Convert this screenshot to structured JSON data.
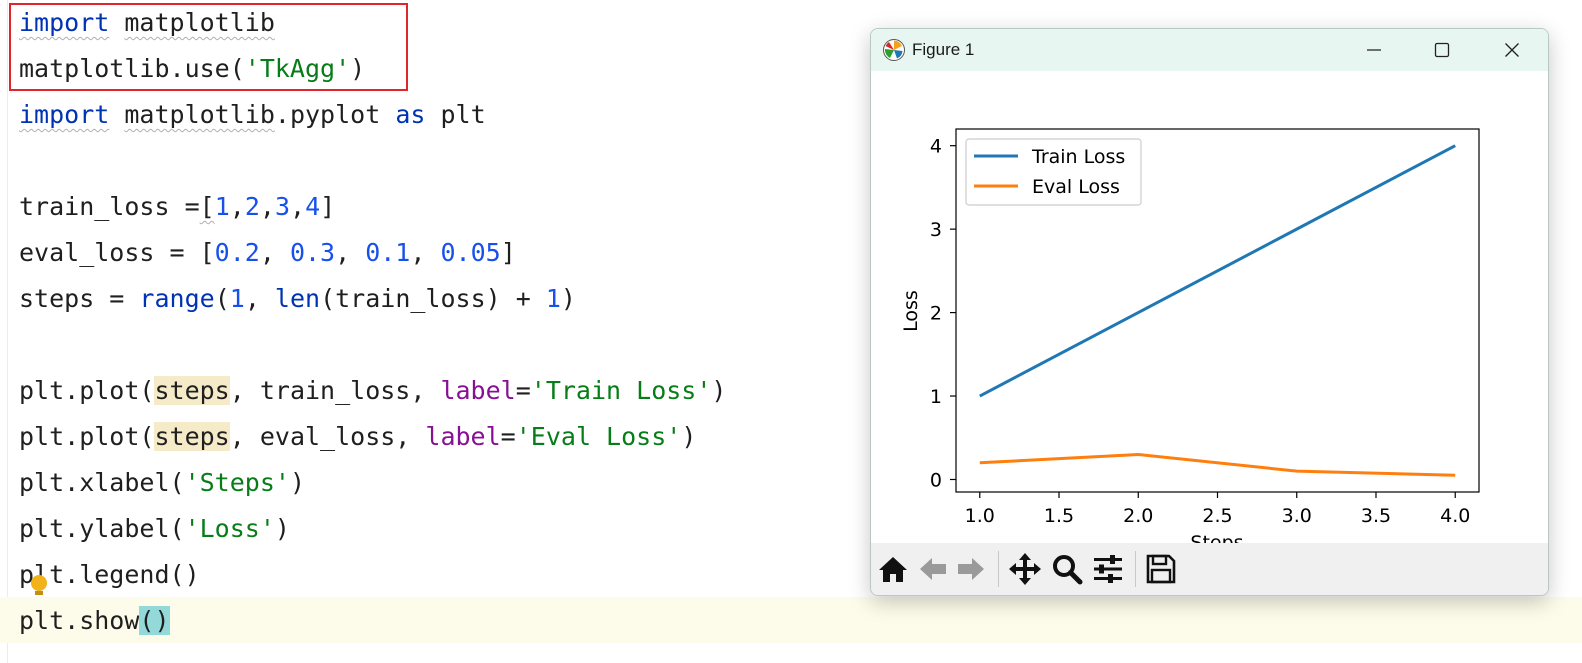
{
  "editor": {
    "lines": [
      {
        "tokens": [
          {
            "t": "import",
            "c": "kw",
            "sq": true
          },
          {
            "t": " "
          },
          {
            "t": "matplotlib",
            "sq": true
          }
        ]
      },
      {
        "tokens": [
          {
            "t": "matplotlib.use("
          },
          {
            "t": "'TkAgg'",
            "c": "str"
          },
          {
            "t": ")"
          }
        ]
      },
      {
        "tokens": [
          {
            "t": "import",
            "c": "kw",
            "sq": true
          },
          {
            "t": " "
          },
          {
            "t": "matplotlib",
            "sq": true
          },
          {
            "t": ".pyplot "
          },
          {
            "t": "as",
            "c": "kw"
          },
          {
            "t": " plt"
          }
        ]
      },
      {
        "tokens": []
      },
      {
        "tokens": [
          {
            "t": "train_loss ="
          },
          {
            "t": "[",
            "sq": true
          },
          {
            "t": "1",
            "c": "num"
          },
          {
            "t": ","
          },
          {
            "t": "2",
            "c": "num"
          },
          {
            "t": ","
          },
          {
            "t": "3",
            "c": "num"
          },
          {
            "t": ","
          },
          {
            "t": "4",
            "c": "num"
          },
          {
            "t": "]"
          }
        ]
      },
      {
        "tokens": [
          {
            "t": "eval_loss = ["
          },
          {
            "t": "0.2",
            "c": "num"
          },
          {
            "t": ", "
          },
          {
            "t": "0.3",
            "c": "num"
          },
          {
            "t": ", "
          },
          {
            "t": "0.1",
            "c": "num"
          },
          {
            "t": ", "
          },
          {
            "t": "0.05",
            "c": "num"
          },
          {
            "t": "]"
          }
        ]
      },
      {
        "tokens": [
          {
            "t": "steps = "
          },
          {
            "t": "range",
            "c": "kw"
          },
          {
            "t": "("
          },
          {
            "t": "1",
            "c": "num"
          },
          {
            "t": ", "
          },
          {
            "t": "len",
            "c": "kw"
          },
          {
            "t": "(train_loss) + "
          },
          {
            "t": "1",
            "c": "num"
          },
          {
            "t": ")"
          }
        ]
      },
      {
        "tokens": []
      },
      {
        "tokens": [
          {
            "t": "plt.plot("
          },
          {
            "t": "steps",
            "c": "hl-steps"
          },
          {
            "t": ", train_loss, "
          },
          {
            "t": "label",
            "c": "param"
          },
          {
            "t": "="
          },
          {
            "t": "'Train Loss'",
            "c": "str"
          },
          {
            "t": ")"
          }
        ]
      },
      {
        "tokens": [
          {
            "t": "plt.plot("
          },
          {
            "t": "steps",
            "c": "hl-steps"
          },
          {
            "t": ", eval_loss, "
          },
          {
            "t": "label",
            "c": "param"
          },
          {
            "t": "="
          },
          {
            "t": "'Eval Loss'",
            "c": "str"
          },
          {
            "t": ")"
          }
        ]
      },
      {
        "tokens": [
          {
            "t": "plt.xlabel("
          },
          {
            "t": "'Steps'",
            "c": "str"
          },
          {
            "t": ")"
          }
        ]
      },
      {
        "tokens": [
          {
            "t": "plt.ylabel("
          },
          {
            "t": "'Loss'",
            "c": "str"
          },
          {
            "t": ")"
          }
        ]
      },
      {
        "tokens": [
          {
            "t": "plt.legend()"
          }
        ]
      },
      {
        "tokens": [
          {
            "t": "plt.show"
          },
          {
            "t": "()",
            "c": "hl-paren"
          }
        ]
      }
    ]
  },
  "window": {
    "title": "Figure 1",
    "app_icon": "matplotlib-icon",
    "controls": [
      "minimize-icon",
      "maximize-icon",
      "close-icon"
    ]
  },
  "toolbar": {
    "buttons": [
      "home-icon",
      "back-arrow-icon",
      "forward-arrow-icon",
      "pan-icon",
      "zoom-icon",
      "configure-subplots-icon",
      "save-icon"
    ]
  },
  "chart_data": {
    "type": "line",
    "xlabel": "Steps",
    "ylabel": "Loss",
    "x": [
      1,
      2,
      3,
      4
    ],
    "xlim": [
      0.85,
      4.15
    ],
    "ylim": [
      -0.15,
      4.2
    ],
    "xticks": [
      "1.0",
      "1.5",
      "2.0",
      "2.5",
      "3.0",
      "3.5",
      "4.0"
    ],
    "yticks": [
      "0",
      "1",
      "2",
      "3",
      "4"
    ],
    "legend_position": "top-left",
    "grid": false,
    "series": [
      {
        "name": "Train Loss",
        "values": [
          1,
          2,
          3,
          4
        ],
        "color": "#1f77b4"
      },
      {
        "name": "Eval Loss",
        "values": [
          0.2,
          0.3,
          0.1,
          0.05
        ],
        "color": "#ff7f0e"
      }
    ]
  }
}
